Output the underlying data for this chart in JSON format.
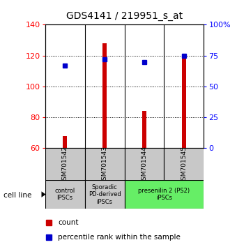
{
  "title": "GDS4141 / 219951_s_at",
  "samples": [
    "GSM701542",
    "GSM701543",
    "GSM701544",
    "GSM701545"
  ],
  "counts": [
    68,
    128,
    84,
    120
  ],
  "percentile_ranks": [
    67,
    72,
    70,
    75
  ],
  "ylim_left": [
    60,
    140
  ],
  "ylim_right": [
    0,
    100
  ],
  "yticks_left": [
    60,
    80,
    100,
    120,
    140
  ],
  "yticks_right": [
    0,
    25,
    50,
    75,
    100
  ],
  "ytick_labels_right": [
    "0",
    "25",
    "50",
    "75",
    "100%"
  ],
  "groups": [
    {
      "label": "control\nIPSCs",
      "samples": [
        0
      ],
      "color": "#c8c8c8"
    },
    {
      "label": "Sporadic\nPD-derived\niPSCs",
      "samples": [
        1
      ],
      "color": "#c8c8c8"
    },
    {
      "label": "presenilin 2 (PS2)\niPSCs",
      "samples": [
        2,
        3
      ],
      "color": "#66ee66"
    }
  ],
  "bar_color": "#cc0000",
  "dot_color": "#0000cc",
  "bar_width": 0.12,
  "sample_box_color": "#c8c8c8",
  "legend_labels": [
    "count",
    "percentile rank within the sample"
  ]
}
